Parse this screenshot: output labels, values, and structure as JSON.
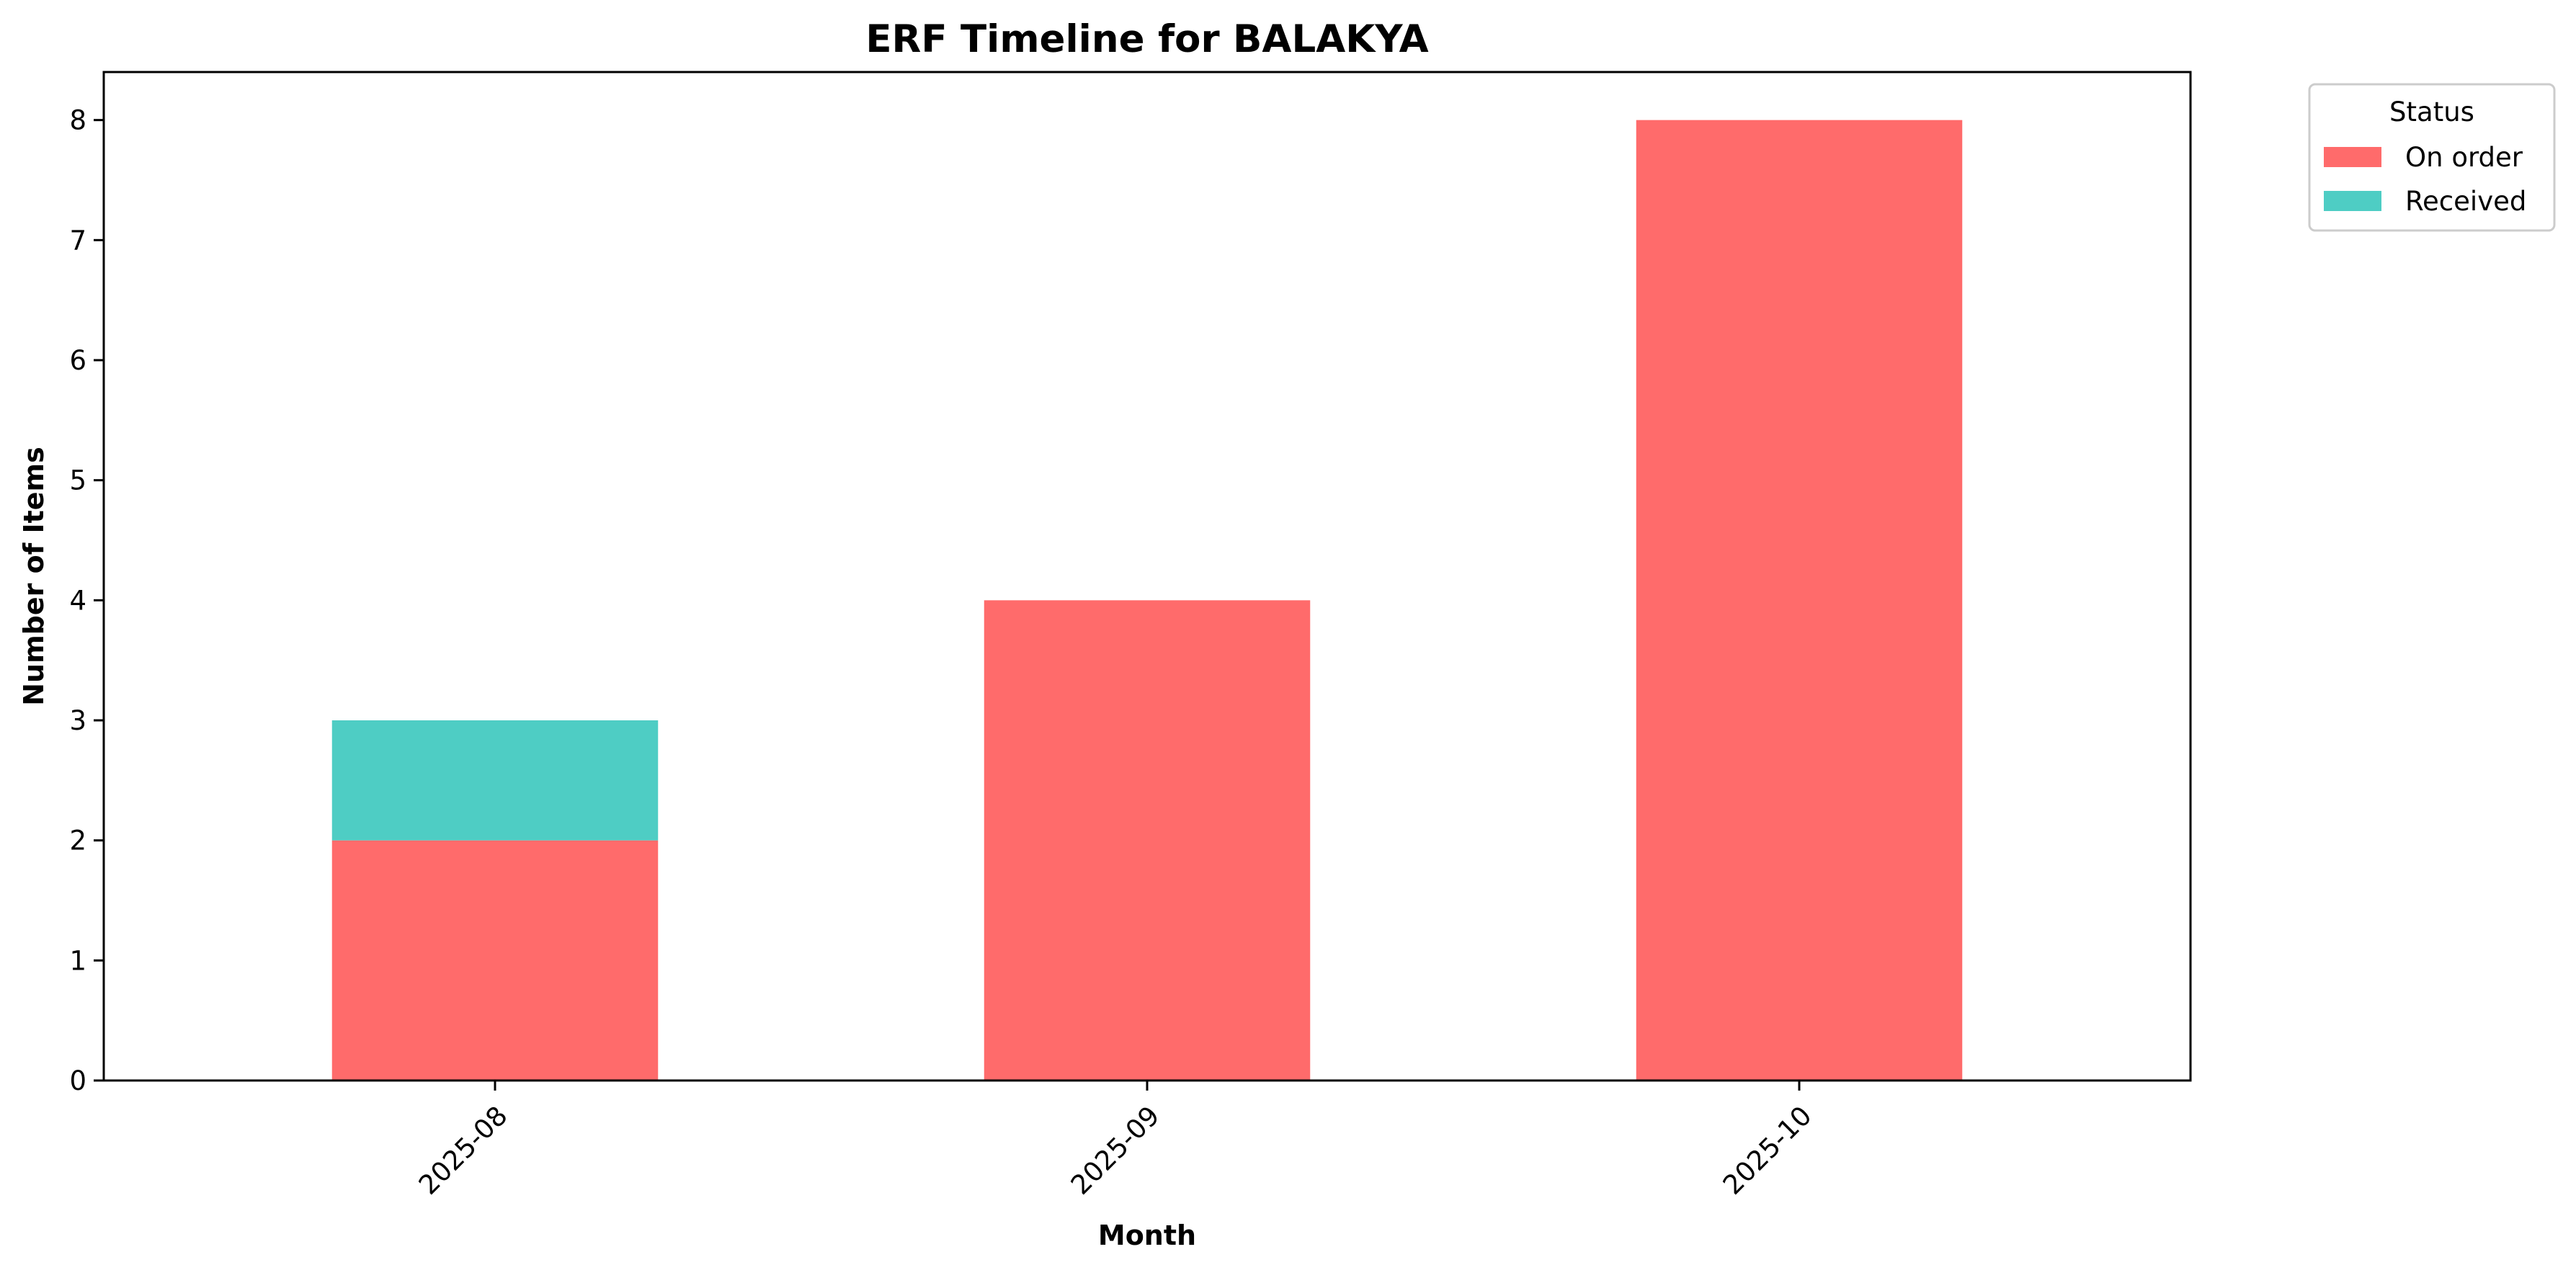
{
  "chart_data": {
    "type": "bar",
    "stacked": true,
    "title": "ERF Timeline for BALAKYA",
    "xlabel": "Month",
    "ylabel": "Number of Items",
    "categories": [
      "2025-08",
      "2025-09",
      "2025-10"
    ],
    "series": [
      {
        "name": "On order",
        "values": [
          2,
          4,
          8
        ],
        "color": "#ff6b6b"
      },
      {
        "name": "Received",
        "values": [
          1,
          0,
          0
        ],
        "color": "#4ecdc4"
      }
    ],
    "ylim": [
      0,
      8.4
    ],
    "yticks": [
      0,
      1,
      2,
      3,
      4,
      5,
      6,
      7,
      8
    ],
    "legend": {
      "title": "Status",
      "placement": "outside-top-right"
    },
    "grid": false
  }
}
